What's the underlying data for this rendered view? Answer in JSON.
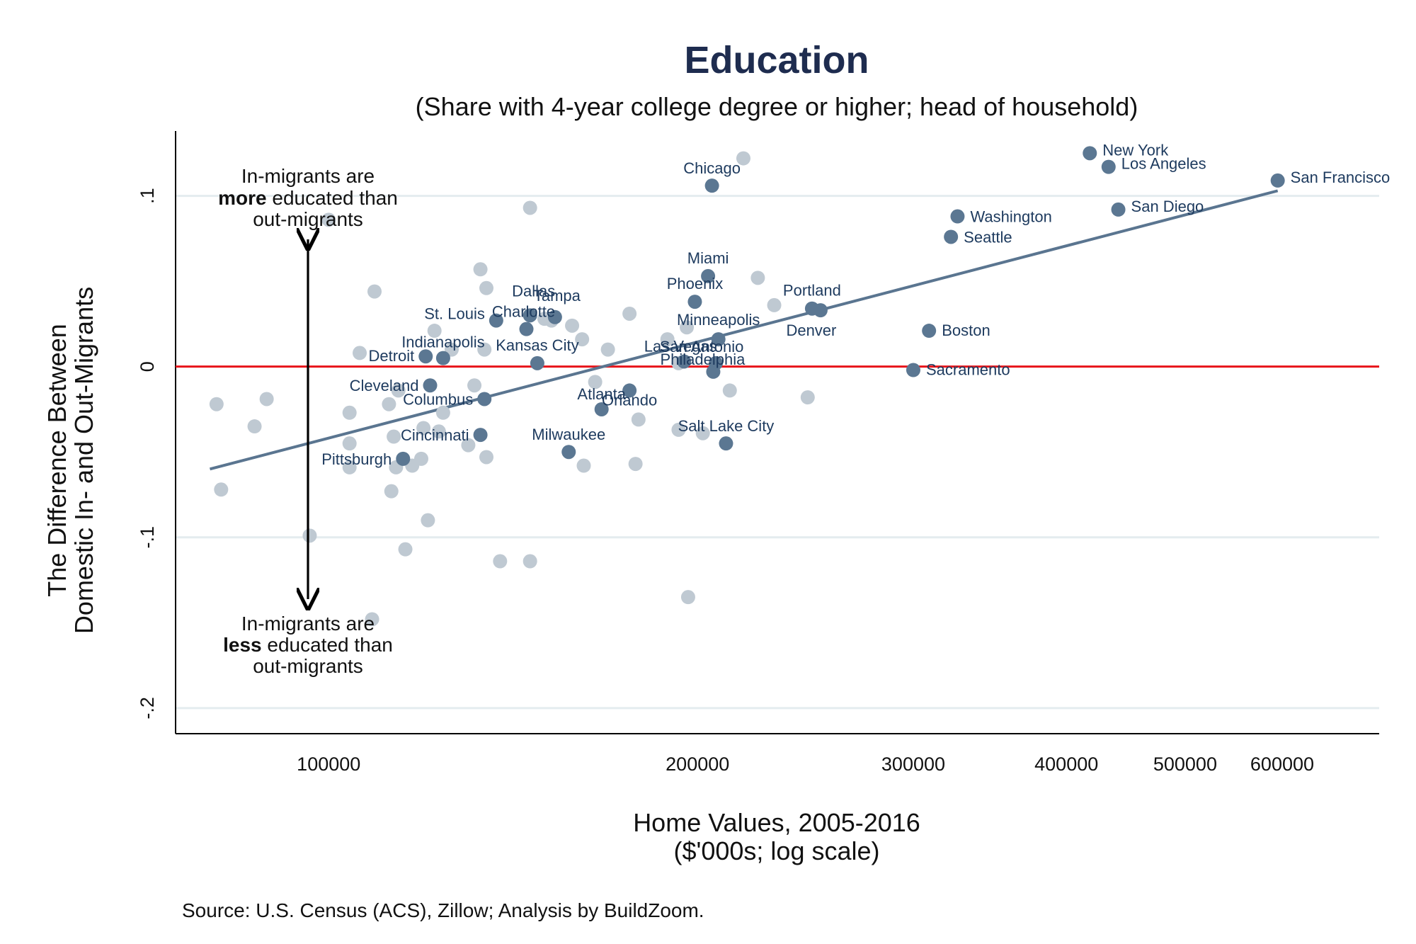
{
  "chart_data": {
    "type": "scatter",
    "title": "Education",
    "subtitle": "(Share with 4-year college degree or higher; head of household)",
    "xlabel_line1": "Home Values, 2005-2016",
    "xlabel_line2": "($'000s; log scale)",
    "ylabel_line1": "The Difference Between",
    "ylabel_line2": "Domestic In- and Out-Migrants",
    "x_scale": "log",
    "xlim": [
      75000,
      720000
    ],
    "ylim": [
      -0.215,
      0.138
    ],
    "x_ticks": [
      {
        "value": 100000,
        "label": "100000"
      },
      {
        "value": 200000,
        "label": "200000"
      },
      {
        "value": 300000,
        "label": "300000"
      },
      {
        "value": 400000,
        "label": "400000"
      },
      {
        "value": 500000,
        "label": "500000"
      },
      {
        "value": 600000,
        "label": "600000"
      }
    ],
    "y_ticks": [
      {
        "value": 0.1,
        "label": ".1"
      },
      {
        "value": 0,
        "label": "0"
      },
      {
        "value": -0.1,
        "label": "-.1"
      },
      {
        "value": -0.2,
        "label": "-.2"
      }
    ],
    "grid": "horizontal",
    "reference_line": {
      "y": 0,
      "color": "#e8141a"
    },
    "fit_line": {
      "x": [
        80000,
        595000
      ],
      "y": [
        -0.06,
        0.103
      ],
      "color": "#5a7590"
    },
    "colors": {
      "highlight": "#5b7792",
      "other": "#bfc9d2",
      "label": "#1d3a5e",
      "title": "#1e2c4f"
    },
    "highlighted": [
      {
        "name": "San Francisco",
        "x": 595000,
        "y": 0.109
      },
      {
        "name": "New York",
        "x": 418000,
        "y": 0.125
      },
      {
        "name": "Los Angeles",
        "x": 433000,
        "y": 0.117
      },
      {
        "name": "San Diego",
        "x": 441000,
        "y": 0.092
      },
      {
        "name": "Washington",
        "x": 326000,
        "y": 0.088
      },
      {
        "name": "Seattle",
        "x": 322000,
        "y": 0.076
      },
      {
        "name": "Chicago",
        "x": 205500,
        "y": 0.106
      },
      {
        "name": "Boston",
        "x": 309000,
        "y": 0.021
      },
      {
        "name": "Sacramento",
        "x": 300000,
        "y": -0.002
      },
      {
        "name": "Portland",
        "x": 248000,
        "y": 0.034
      },
      {
        "name": "Denver",
        "x": 252000,
        "y": 0.033
      },
      {
        "name": "Miami",
        "x": 204000,
        "y": 0.053
      },
      {
        "name": "Phoenix",
        "x": 199000,
        "y": 0.038
      },
      {
        "name": "Minneapolis",
        "x": 208000,
        "y": 0.016
      },
      {
        "name": "San Antonio",
        "x": 207000,
        "y": 0.002
      },
      {
        "name": "Philadelphia",
        "x": 206000,
        "y": -0.003
      },
      {
        "name": "Las Vegas",
        "x": 195000,
        "y": 0.003
      },
      {
        "name": "Salt Lake City",
        "x": 211000,
        "y": -0.045
      },
      {
        "name": "Orlando",
        "x": 176000,
        "y": -0.014
      },
      {
        "name": "Atlanta",
        "x": 167000,
        "y": -0.025
      },
      {
        "name": "Milwaukee",
        "x": 157000,
        "y": -0.05
      },
      {
        "name": "Kansas City",
        "x": 148000,
        "y": 0.002
      },
      {
        "name": "Tampa",
        "x": 153000,
        "y": 0.029
      },
      {
        "name": "Dallas",
        "x": 146000,
        "y": 0.03
      },
      {
        "name": "Charlotte",
        "x": 145000,
        "y": 0.022
      },
      {
        "name": "St. Louis",
        "x": 137000,
        "y": 0.027
      },
      {
        "name": "Indianapolis",
        "x": 124000,
        "y": 0.005
      },
      {
        "name": "Detroit",
        "x": 120000,
        "y": 0.006
      },
      {
        "name": "Cleveland",
        "x": 121000,
        "y": -0.011
      },
      {
        "name": "Columbus",
        "x": 134000,
        "y": -0.019
      },
      {
        "name": "Cincinnati",
        "x": 133000,
        "y": -0.04
      },
      {
        "name": "Pittsburgh",
        "x": 115000,
        "y": -0.054
      }
    ],
    "others": [
      {
        "x": 81000,
        "y": -0.022
      },
      {
        "x": 81700,
        "y": -0.072
      },
      {
        "x": 87000,
        "y": -0.035
      },
      {
        "x": 89000,
        "y": -0.019
      },
      {
        "x": 96500,
        "y": -0.099
      },
      {
        "x": 100000,
        "y": 0.086
      },
      {
        "x": 104000,
        "y": -0.027
      },
      {
        "x": 104000,
        "y": -0.045
      },
      {
        "x": 104000,
        "y": -0.059
      },
      {
        "x": 106000,
        "y": 0.008
      },
      {
        "x": 108500,
        "y": -0.148
      },
      {
        "x": 109000,
        "y": 0.044
      },
      {
        "x": 112000,
        "y": -0.022
      },
      {
        "x": 112500,
        "y": -0.073
      },
      {
        "x": 113000,
        "y": -0.041
      },
      {
        "x": 113500,
        "y": -0.059
      },
      {
        "x": 114000,
        "y": -0.014
      },
      {
        "x": 115500,
        "y": -0.107
      },
      {
        "x": 117000,
        "y": -0.058
      },
      {
        "x": 119000,
        "y": -0.054
      },
      {
        "x": 119500,
        "y": -0.036
      },
      {
        "x": 120500,
        "y": -0.09
      },
      {
        "x": 122000,
        "y": 0.021
      },
      {
        "x": 123000,
        "y": -0.038
      },
      {
        "x": 124000,
        "y": -0.027
      },
      {
        "x": 126000,
        "y": 0.01
      },
      {
        "x": 130000,
        "y": -0.046
      },
      {
        "x": 131500,
        "y": -0.011
      },
      {
        "x": 133000,
        "y": 0.057
      },
      {
        "x": 134000,
        "y": 0.01
      },
      {
        "x": 134500,
        "y": 0.046
      },
      {
        "x": 134500,
        "y": -0.053
      },
      {
        "x": 138000,
        "y": -0.114
      },
      {
        "x": 146000,
        "y": 0.093
      },
      {
        "x": 146000,
        "y": -0.114
      },
      {
        "x": 150000,
        "y": 0.028
      },
      {
        "x": 152000,
        "y": 0.027
      },
      {
        "x": 158000,
        "y": 0.024
      },
      {
        "x": 161000,
        "y": 0.016
      },
      {
        "x": 161500,
        "y": -0.058
      },
      {
        "x": 165000,
        "y": -0.009
      },
      {
        "x": 169000,
        "y": 0.01
      },
      {
        "x": 176000,
        "y": 0.031
      },
      {
        "x": 178000,
        "y": -0.057
      },
      {
        "x": 179000,
        "y": -0.031
      },
      {
        "x": 189000,
        "y": 0.016
      },
      {
        "x": 193000,
        "y": 0.002
      },
      {
        "x": 193000,
        "y": -0.037
      },
      {
        "x": 196000,
        "y": 0.023
      },
      {
        "x": 196500,
        "y": -0.135
      },
      {
        "x": 202000,
        "y": -0.039
      },
      {
        "x": 212500,
        "y": -0.014
      },
      {
        "x": 218000,
        "y": 0.122
      },
      {
        "x": 224000,
        "y": 0.052
      },
      {
        "x": 231000,
        "y": 0.036
      },
      {
        "x": 246000,
        "y": -0.018
      }
    ],
    "annotations": {
      "upper": {
        "line1": "In-migrants are",
        "bold": "more",
        "rest": " educated than",
        "line3": "out-migrants"
      },
      "lower": {
        "line1": "In-migrants are",
        "bold": "less",
        "rest": " educated than",
        "line3": "out-migrants"
      }
    },
    "source": "Source: U.S. Census (ACS), Zillow; Analysis by BuildZoom."
  }
}
